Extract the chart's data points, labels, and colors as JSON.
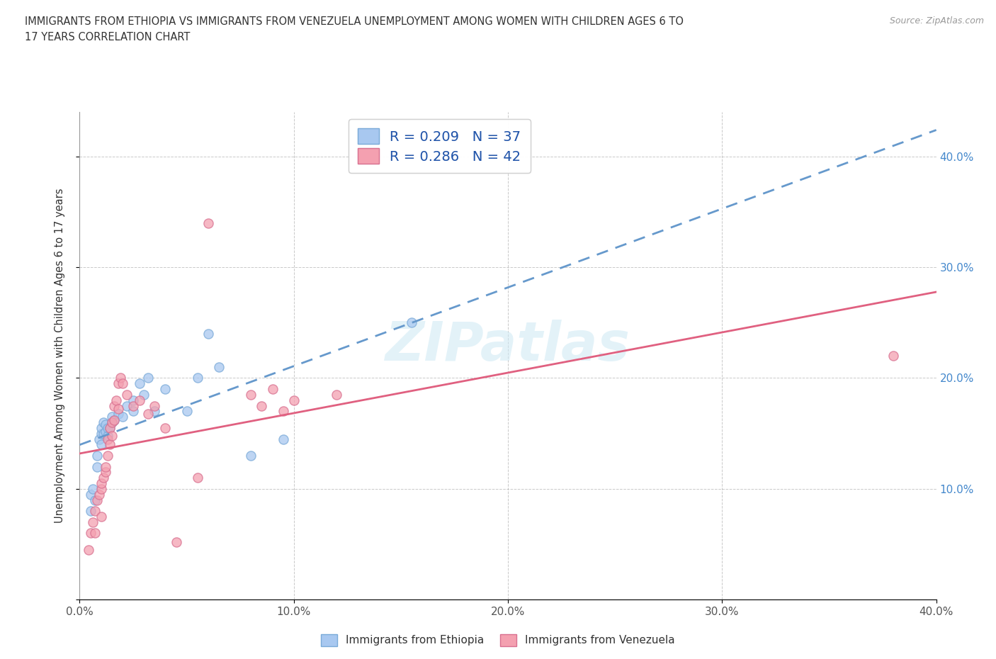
{
  "title_line1": "IMMIGRANTS FROM ETHIOPIA VS IMMIGRANTS FROM VENEZUELA UNEMPLOYMENT AMONG WOMEN WITH CHILDREN AGES 6 TO",
  "title_line2": "17 YEARS CORRELATION CHART",
  "source": "Source: ZipAtlas.com",
  "ylabel": "Unemployment Among Women with Children Ages 6 to 17 years",
  "xlim": [
    0.0,
    0.4
  ],
  "ylim": [
    0.0,
    0.44
  ],
  "xticks": [
    0.0,
    0.1,
    0.2,
    0.3,
    0.4
  ],
  "yticks": [
    0.0,
    0.1,
    0.2,
    0.3,
    0.4
  ],
  "xtick_labels": [
    "0.0%",
    "10.0%",
    "20.0%",
    "30.0%",
    "40.0%"
  ],
  "ytick_labels_right": [
    "",
    "10.0%",
    "20.0%",
    "30.0%",
    "40.0%"
  ],
  "watermark": "ZIPatlas",
  "ethiopia_color": "#a8c8f0",
  "ethiopia_edge": "#7aaad8",
  "venezuela_color": "#f4a0b0",
  "venezuela_edge": "#d87090",
  "ethiopia_trend_color": "#6699cc",
  "venezuela_trend_color": "#e06080",
  "ethiopia_R": 0.209,
  "ethiopia_N": 37,
  "venezuela_R": 0.286,
  "venezuela_N": 42,
  "legend_label_ethiopia": "Immigrants from Ethiopia",
  "legend_label_venezuela": "Immigrants from Venezuela",
  "ethiopia_scatter": [
    [
      0.005,
      0.08
    ],
    [
      0.005,
      0.095
    ],
    [
      0.006,
      0.1
    ],
    [
      0.007,
      0.09
    ],
    [
      0.008,
      0.12
    ],
    [
      0.008,
      0.13
    ],
    [
      0.009,
      0.145
    ],
    [
      0.01,
      0.14
    ],
    [
      0.01,
      0.15
    ],
    [
      0.01,
      0.155
    ],
    [
      0.011,
      0.15
    ],
    [
      0.011,
      0.16
    ],
    [
      0.012,
      0.152
    ],
    [
      0.012,
      0.158
    ],
    [
      0.013,
      0.148
    ],
    [
      0.013,
      0.155
    ],
    [
      0.014,
      0.155
    ],
    [
      0.015,
      0.16
    ],
    [
      0.015,
      0.165
    ],
    [
      0.016,
      0.162
    ],
    [
      0.018,
      0.168
    ],
    [
      0.02,
      0.165
    ],
    [
      0.022,
      0.175
    ],
    [
      0.025,
      0.17
    ],
    [
      0.025,
      0.18
    ],
    [
      0.028,
      0.195
    ],
    [
      0.03,
      0.185
    ],
    [
      0.032,
      0.2
    ],
    [
      0.035,
      0.17
    ],
    [
      0.04,
      0.19
    ],
    [
      0.05,
      0.17
    ],
    [
      0.055,
      0.2
    ],
    [
      0.06,
      0.24
    ],
    [
      0.065,
      0.21
    ],
    [
      0.08,
      0.13
    ],
    [
      0.095,
      0.145
    ],
    [
      0.155,
      0.25
    ]
  ],
  "venezuela_scatter": [
    [
      0.004,
      0.045
    ],
    [
      0.005,
      0.06
    ],
    [
      0.006,
      0.07
    ],
    [
      0.007,
      0.06
    ],
    [
      0.007,
      0.08
    ],
    [
      0.008,
      0.09
    ],
    [
      0.009,
      0.095
    ],
    [
      0.01,
      0.075
    ],
    [
      0.01,
      0.1
    ],
    [
      0.01,
      0.105
    ],
    [
      0.011,
      0.11
    ],
    [
      0.012,
      0.115
    ],
    [
      0.012,
      0.12
    ],
    [
      0.013,
      0.13
    ],
    [
      0.013,
      0.145
    ],
    [
      0.014,
      0.14
    ],
    [
      0.014,
      0.155
    ],
    [
      0.015,
      0.148
    ],
    [
      0.015,
      0.16
    ],
    [
      0.016,
      0.162
    ],
    [
      0.016,
      0.175
    ],
    [
      0.017,
      0.18
    ],
    [
      0.018,
      0.172
    ],
    [
      0.018,
      0.195
    ],
    [
      0.019,
      0.2
    ],
    [
      0.02,
      0.195
    ],
    [
      0.022,
      0.185
    ],
    [
      0.025,
      0.175
    ],
    [
      0.028,
      0.18
    ],
    [
      0.032,
      0.168
    ],
    [
      0.035,
      0.175
    ],
    [
      0.04,
      0.155
    ],
    [
      0.045,
      0.052
    ],
    [
      0.055,
      0.11
    ],
    [
      0.06,
      0.34
    ],
    [
      0.08,
      0.185
    ],
    [
      0.085,
      0.175
    ],
    [
      0.09,
      0.19
    ],
    [
      0.095,
      0.17
    ],
    [
      0.1,
      0.18
    ],
    [
      0.12,
      0.185
    ],
    [
      0.38,
      0.22
    ]
  ]
}
